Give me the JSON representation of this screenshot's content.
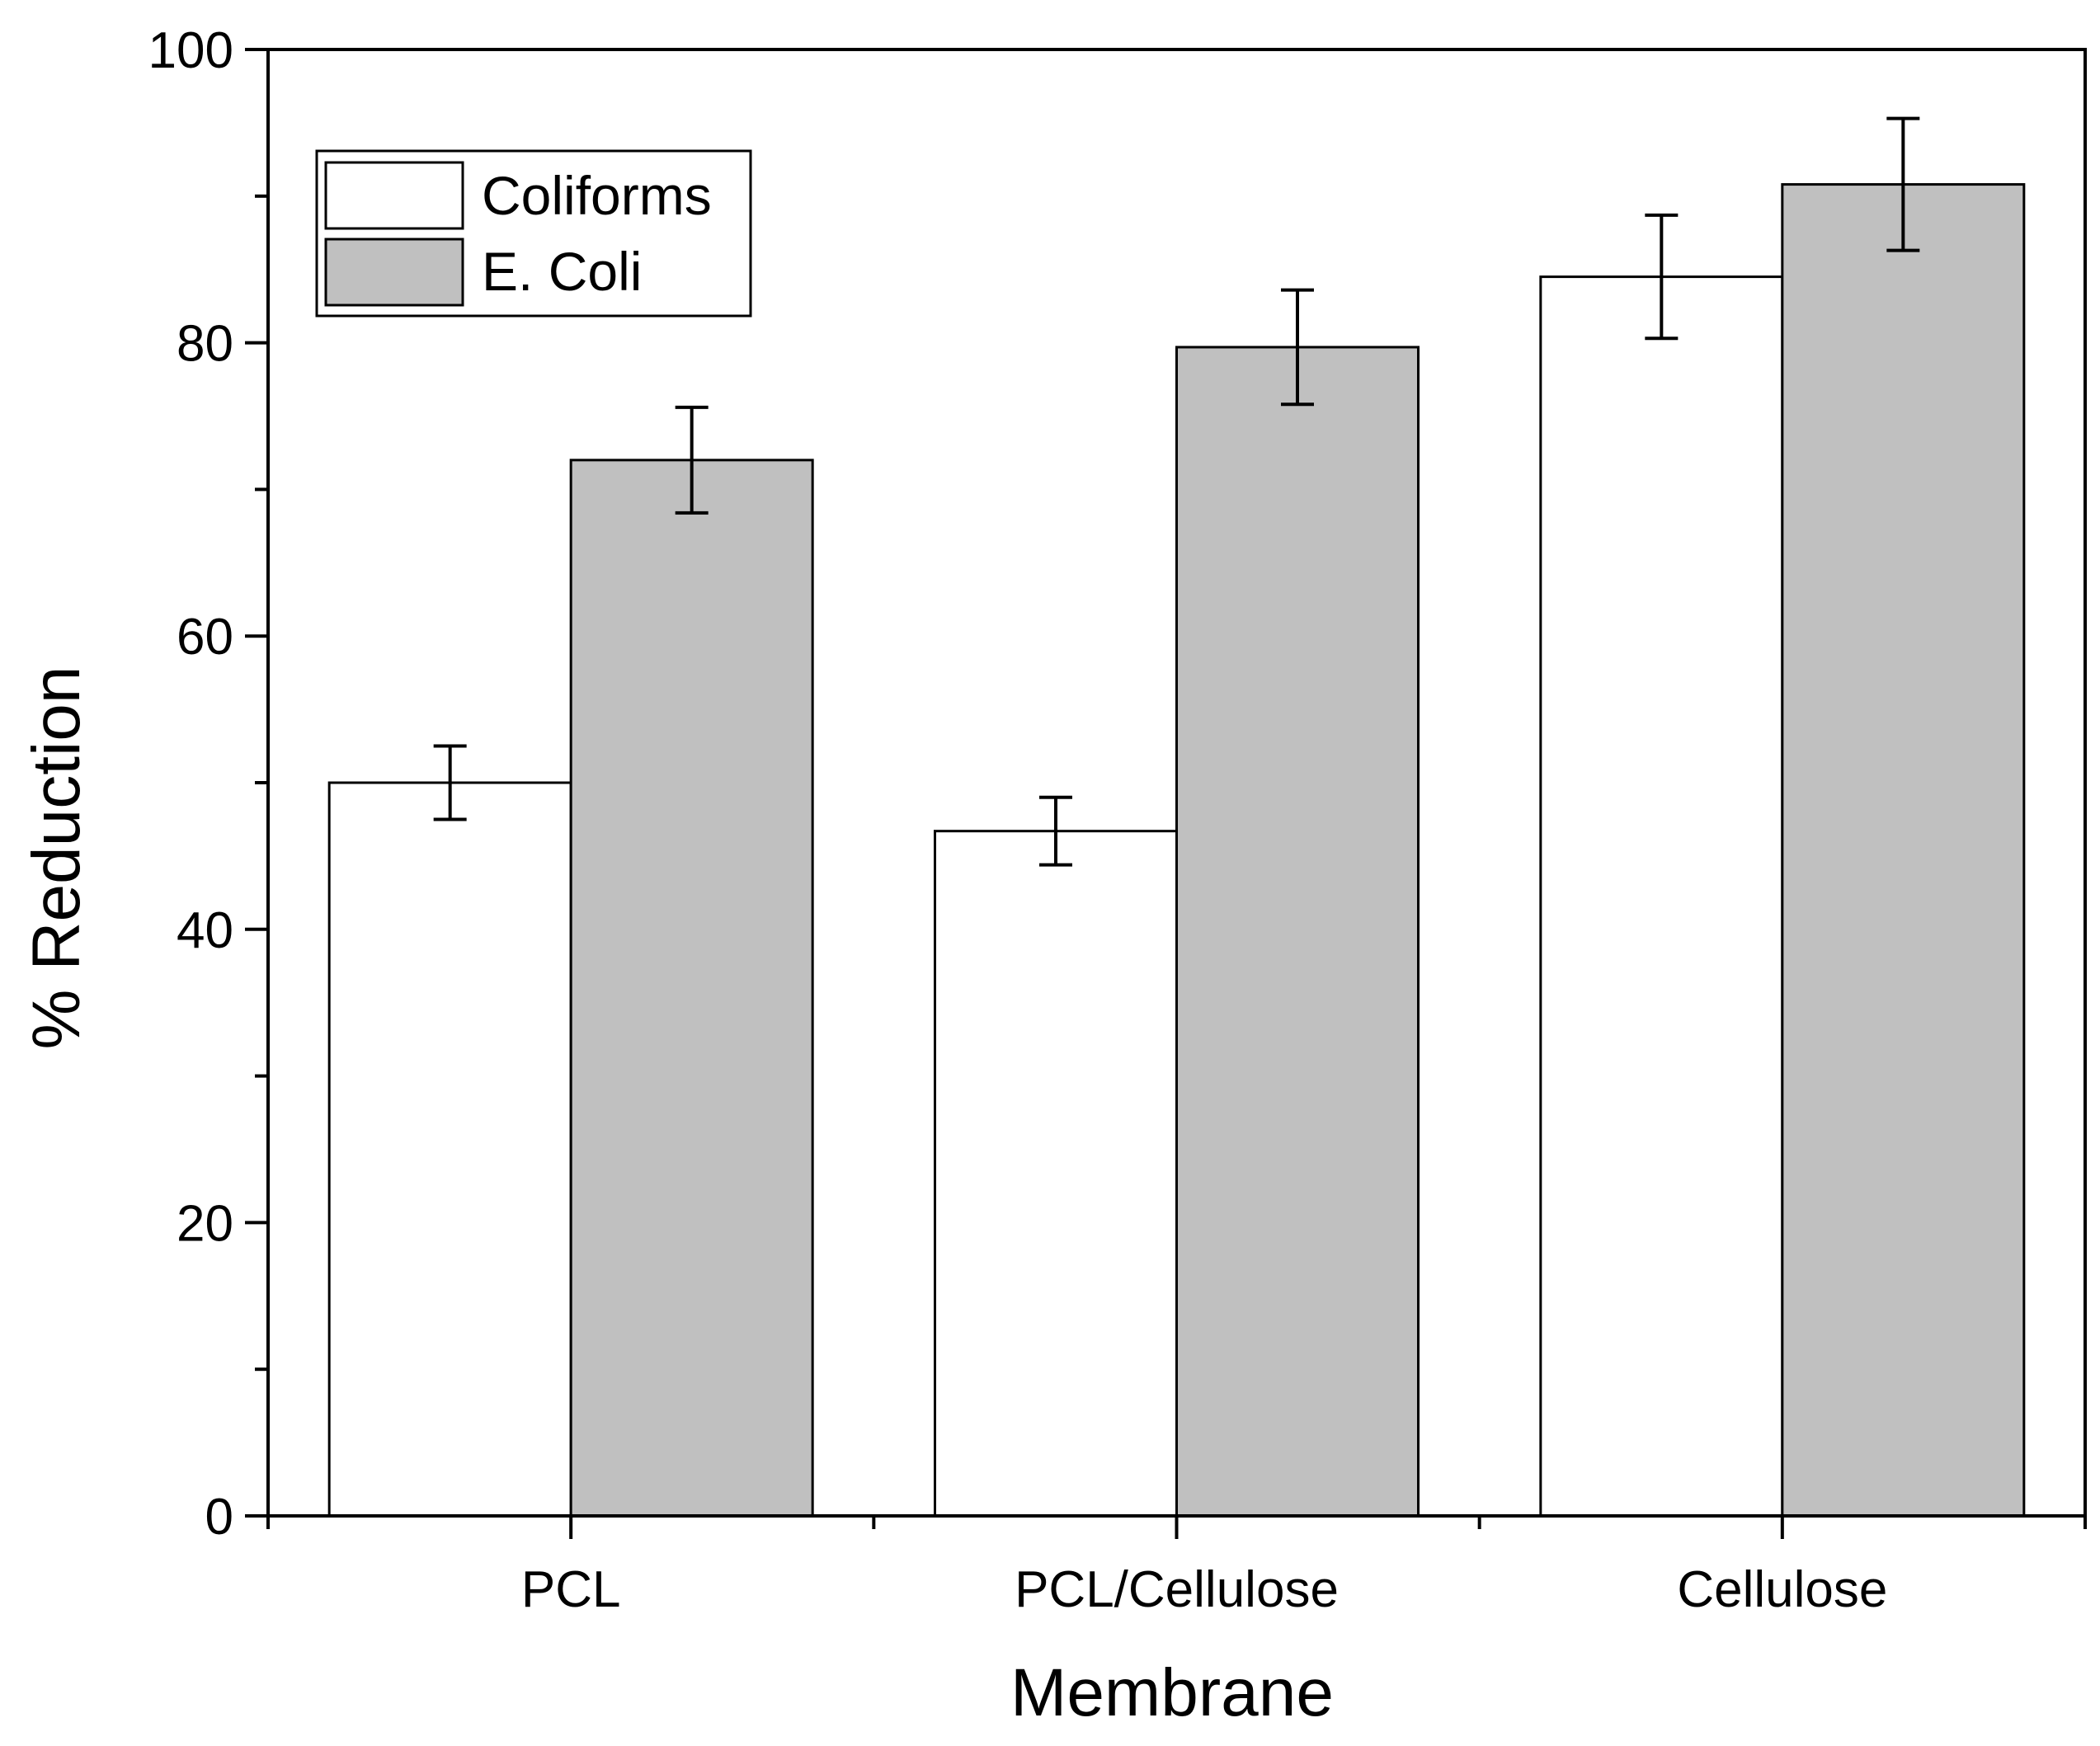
{
  "chart_data": {
    "type": "bar",
    "title": "",
    "xlabel": "Membrane",
    "ylabel": "% Reduction",
    "categories": [
      "PCL",
      "PCL/Cellulose",
      "Cellulose"
    ],
    "ylim": [
      0,
      100
    ],
    "yticks": [
      0,
      20,
      40,
      60,
      80,
      100
    ],
    "yminor_step": 10,
    "grid": false,
    "legend_position": "top-left",
    "series": [
      {
        "name": "Coliforms",
        "color": "#ffffff",
        "values": [
          50.0,
          46.7,
          84.5
        ],
        "errors": [
          2.5,
          2.3,
          4.2
        ]
      },
      {
        "name": "E. Coli",
        "color": "#c0c0c0",
        "values": [
          72.0,
          79.7,
          90.8
        ],
        "errors": [
          3.6,
          3.9,
          4.5
        ]
      }
    ]
  }
}
